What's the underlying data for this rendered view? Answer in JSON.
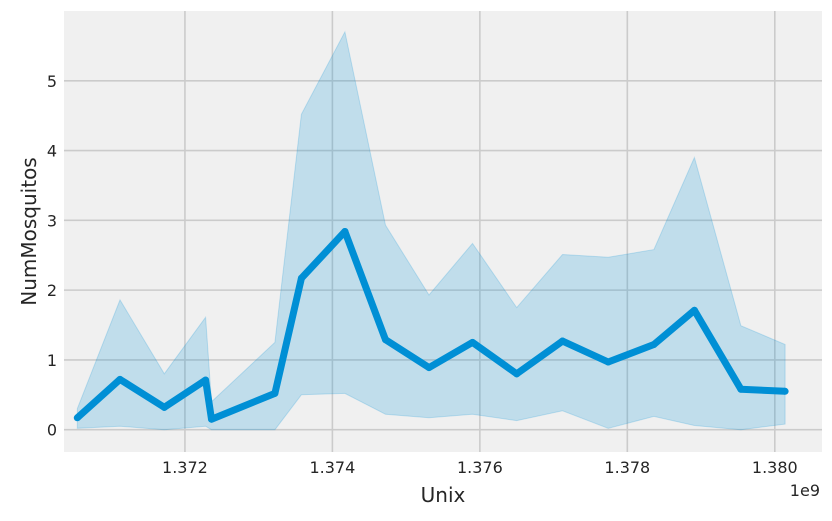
{
  "chart_data": {
    "type": "line",
    "xlabel": "Unix",
    "ylabel": "NumMosquitos",
    "x_offset_label": "1e9",
    "xlim": [
      1.37036,
      1.38064
    ],
    "ylim": [
      -0.32,
      6.0
    ],
    "x_ticks": [
      1.372,
      1.374,
      1.376,
      1.378,
      1.38
    ],
    "x_tick_labels": [
      "1.372",
      "1.374",
      "1.376",
      "1.378",
      "1.380"
    ],
    "y_ticks": [
      0,
      1,
      2,
      3,
      4,
      5
    ],
    "y_tick_labels": [
      "0",
      "1",
      "2",
      "3",
      "4",
      "5"
    ],
    "grid": true,
    "colors": {
      "line": "#008fd5",
      "band": "#008fd5",
      "background": "#f0f0f0",
      "grid": "#cbcbcb"
    },
    "series": [
      {
        "x": [
          1.37054,
          1.37112,
          1.37172,
          1.37228,
          1.37236,
          1.37322,
          1.37358,
          1.37417,
          1.37472,
          1.37531,
          1.3759,
          1.3765,
          1.37712,
          1.37774,
          1.37836,
          1.37891,
          1.37954,
          1.38014
        ],
        "y": [
          0.17,
          0.72,
          0.32,
          0.71,
          0.15,
          0.52,
          2.17,
          2.84,
          1.29,
          0.89,
          1.25,
          0.8,
          1.27,
          0.97,
          1.22,
          1.71,
          0.58,
          0.55
        ],
        "ci_low": [
          0.02,
          0.05,
          0.0,
          0.05,
          0.0,
          0.0,
          0.5,
          0.52,
          0.22,
          0.17,
          0.22,
          0.13,
          0.27,
          0.02,
          0.19,
          0.06,
          0.0,
          0.08
        ],
        "ci_high": [
          0.3,
          1.86,
          0.8,
          1.61,
          0.4,
          1.25,
          4.52,
          5.7,
          2.93,
          1.93,
          2.67,
          1.75,
          2.51,
          2.47,
          2.58,
          3.9,
          1.49,
          1.22
        ]
      }
    ]
  }
}
